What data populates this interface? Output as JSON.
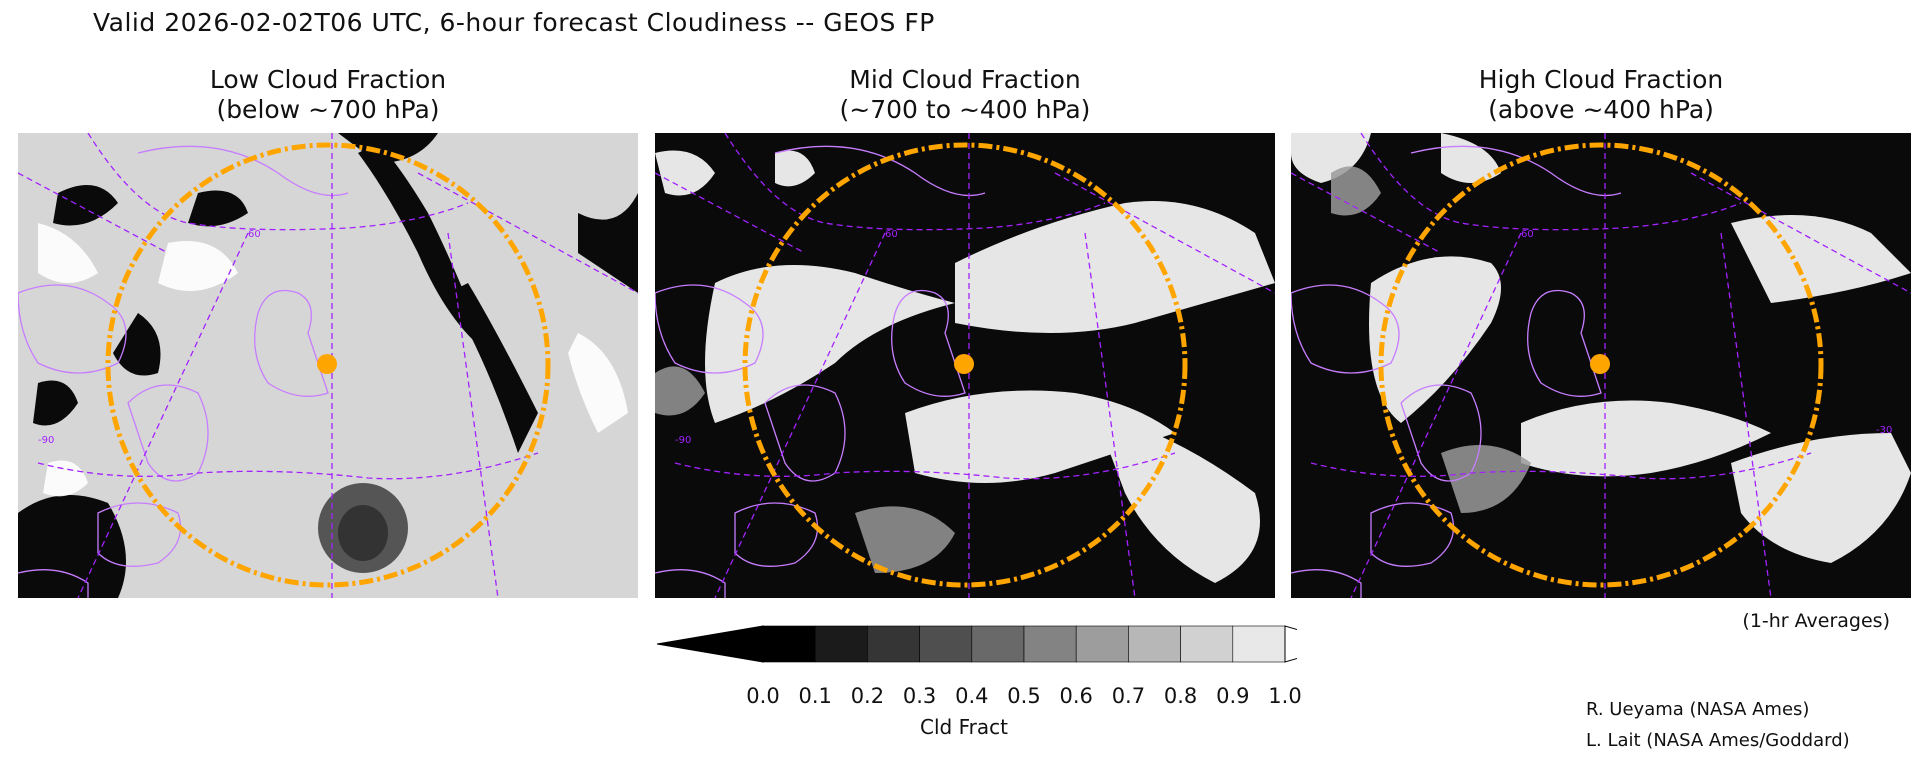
{
  "header": {
    "title": "Valid 2026-02-02T06 UTC, 6-hour forecast Cloudiness -- GEOS FP"
  },
  "panels": [
    {
      "line1": "Low Cloud Fraction",
      "line2": "(below ~700 hPa)"
    },
    {
      "line1": "Mid Cloud Fraction",
      "line2": "(~700 to ~400 hPa)"
    },
    {
      "line1": "High Cloud Fraction",
      "line2": "(above ~400 hPa)"
    }
  ],
  "map_labels": {
    "lat_60": "60",
    "lon_neg90": "-90",
    "lon_neg30": "-30"
  },
  "averages_note": "(1-hr Averages)",
  "colorbar": {
    "label": "Cld Fract",
    "ticks": [
      "0.0",
      "0.1",
      "0.2",
      "0.3",
      "0.4",
      "0.5",
      "0.6",
      "0.7",
      "0.8",
      "0.9",
      "1.0"
    ],
    "colors": [
      "#000000",
      "#1b1b1b",
      "#353535",
      "#4f4f4f",
      "#696969",
      "#838383",
      "#9d9d9d",
      "#b7b7b7",
      "#d1d1d1",
      "#e8e8e8"
    ]
  },
  "credits": {
    "line1": "R. Ueyama (NASA Ames)",
    "line2": "L. Lait (NASA Ames/Goddard)"
  },
  "styles": {
    "coast_color": "#c77dff",
    "grid_color": "#a322ff",
    "ring_color": "#ffa500",
    "marker_color": "#ffa500"
  }
}
